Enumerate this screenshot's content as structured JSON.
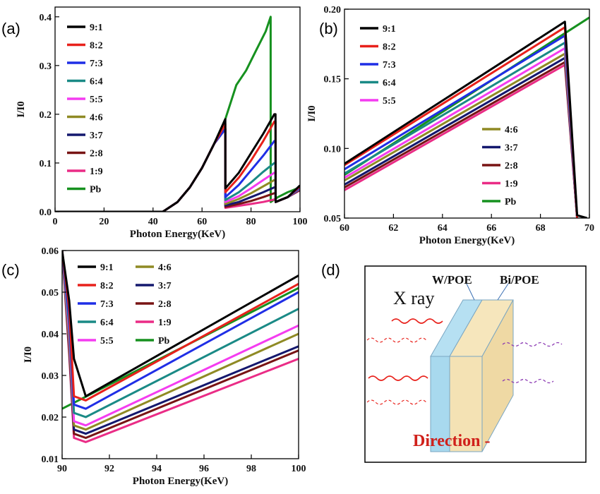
{
  "colors": {
    "9:1": "#000000",
    "8:2": "#e8211b",
    "7:3": "#1f2ee6",
    "6:4": "#1a8a86",
    "5:5": "#f43cf0",
    "4:6": "#8f8a24",
    "3:7": "#14186e",
    "2:8": "#781414",
    "1:9": "#ea2c86",
    "Pb": "#16911f"
  },
  "panels": [
    {
      "label": "(a)"
    },
    {
      "label": "(b)"
    },
    {
      "label": "(c)"
    },
    {
      "label": "(d)"
    }
  ],
  "chart_data": [
    {
      "type": "line",
      "panel": "(a)",
      "xlabel": "Photon Energy(KeV)",
      "ylabel": "I/I0",
      "xlim": [
        0,
        100
      ],
      "ylim": [
        0,
        0.42
      ],
      "xticks": [
        0,
        20,
        40,
        60,
        80,
        100
      ],
      "yticks": [
        0.0,
        0.1,
        0.2,
        0.3,
        0.4
      ],
      "ytick_labels": [
        "0.0",
        "0.1",
        "0.2",
        "0.3",
        "0.4"
      ],
      "legend": [
        "9:1",
        "8:2",
        "7:3",
        "6:4",
        "5:5",
        "4:6",
        "3:7",
        "2:8",
        "1:9",
        "Pb"
      ],
      "legend_position": "top-left",
      "series": [
        {
          "name": "Pb",
          "x": [
            0,
            44,
            50,
            55,
            60,
            65,
            69.5,
            74,
            78,
            82,
            86,
            88,
            88.05,
            91,
            95,
            100
          ],
          "y": [
            0,
            0,
            0.02,
            0.05,
            0.09,
            0.14,
            0.19,
            0.26,
            0.29,
            0.33,
            0.37,
            0.4,
            0.02,
            0.03,
            0.04,
            0.05
          ]
        },
        {
          "name": "1:9",
          "x": [
            0,
            44,
            50,
            55,
            60,
            65,
            69.5,
            69.55,
            75,
            80,
            85,
            89.5,
            90,
            90.05,
            95,
            100
          ],
          "y": [
            0,
            0,
            0.02,
            0.05,
            0.09,
            0.14,
            0.17,
            0.008,
            0.012,
            0.016,
            0.02,
            0.025,
            0.025,
            0.02,
            0.03,
            0.044
          ]
        },
        {
          "name": "2:8",
          "x": [
            0,
            44,
            50,
            55,
            60,
            65,
            69.5,
            69.55,
            75,
            80,
            85,
            89.5,
            90,
            90.05,
            95,
            100
          ],
          "y": [
            0,
            0,
            0.02,
            0.05,
            0.09,
            0.14,
            0.17,
            0.01,
            0.016,
            0.022,
            0.03,
            0.038,
            0.038,
            0.02,
            0.03,
            0.045
          ]
        },
        {
          "name": "3:7",
          "x": [
            0,
            44,
            50,
            55,
            60,
            65,
            69.5,
            69.55,
            75,
            80,
            85,
            89.5,
            90,
            90.05,
            95,
            100
          ],
          "y": [
            0,
            0,
            0.02,
            0.05,
            0.09,
            0.14,
            0.17,
            0.013,
            0.02,
            0.03,
            0.04,
            0.05,
            0.05,
            0.02,
            0.03,
            0.046
          ]
        },
        {
          "name": "4:6",
          "x": [
            0,
            44,
            50,
            55,
            60,
            65,
            69.5,
            69.55,
            75,
            80,
            85,
            89.5,
            90,
            90.05,
            95,
            100
          ],
          "y": [
            0,
            0,
            0.02,
            0.05,
            0.09,
            0.14,
            0.17,
            0.016,
            0.026,
            0.038,
            0.052,
            0.065,
            0.065,
            0.02,
            0.03,
            0.047
          ]
        },
        {
          "name": "5:5",
          "x": [
            0,
            44,
            50,
            55,
            60,
            65,
            69.5,
            69.55,
            75,
            80,
            85,
            89.5,
            90,
            90.05,
            95,
            100
          ],
          "y": [
            0,
            0,
            0.02,
            0.05,
            0.09,
            0.14,
            0.17,
            0.02,
            0.032,
            0.048,
            0.065,
            0.08,
            0.08,
            0.02,
            0.03,
            0.048
          ]
        },
        {
          "name": "6:4",
          "x": [
            0,
            44,
            50,
            55,
            60,
            65,
            69.5,
            69.55,
            75,
            80,
            85,
            89.5,
            90,
            90.05,
            95,
            100
          ],
          "y": [
            0,
            0,
            0.02,
            0.05,
            0.09,
            0.14,
            0.17,
            0.024,
            0.04,
            0.06,
            0.082,
            0.1,
            0.1,
            0.02,
            0.03,
            0.049
          ]
        },
        {
          "name": "7:3",
          "x": [
            0,
            44,
            50,
            55,
            60,
            65,
            69.5,
            69.55,
            75,
            80,
            85,
            89.5,
            90,
            90.05,
            95,
            100
          ],
          "y": [
            0,
            0,
            0.02,
            0.05,
            0.09,
            0.14,
            0.17,
            0.03,
            0.055,
            0.085,
            0.115,
            0.145,
            0.145,
            0.02,
            0.03,
            0.05
          ]
        },
        {
          "name": "8:2",
          "x": [
            0,
            44,
            50,
            55,
            60,
            65,
            69.5,
            69.55,
            75,
            80,
            85,
            89.5,
            90,
            90.05,
            95,
            100
          ],
          "y": [
            0,
            0,
            0.02,
            0.05,
            0.09,
            0.14,
            0.18,
            0.04,
            0.07,
            0.105,
            0.145,
            0.185,
            0.185,
            0.02,
            0.03,
            0.052
          ]
        },
        {
          "name": "9:1",
          "x": [
            0,
            44,
            50,
            55,
            60,
            65,
            69.5,
            69.55,
            75,
            80,
            85,
            89.5,
            90,
            90.05,
            95,
            100
          ],
          "y": [
            0,
            0,
            0.02,
            0.05,
            0.09,
            0.14,
            0.19,
            0.048,
            0.08,
            0.12,
            0.16,
            0.2,
            0.2,
            0.02,
            0.03,
            0.054
          ]
        }
      ]
    },
    {
      "type": "line",
      "panel": "(b)",
      "xlabel": "Photon Energy(KeV)",
      "ylabel": "I/I0",
      "xlim": [
        60,
        70
      ],
      "ylim": [
        0.05,
        0.2
      ],
      "xticks": [
        60,
        62,
        64,
        66,
        68,
        70
      ],
      "yticks": [
        0.05,
        0.1,
        0.15,
        0.2
      ],
      "ytick_labels": [
        "0.05",
        "0.10",
        "0.15",
        "0.20"
      ],
      "legend": [
        "9:1",
        "8:2",
        "7:3",
        "6:4",
        "5:5",
        "4:6",
        "3:7",
        "2:8",
        "1:9",
        "Pb"
      ],
      "legend_position": "top-left and center-right",
      "series": [
        {
          "name": "Pb",
          "x": [
            60,
            70
          ],
          "y": [
            0.081,
            0.194
          ]
        },
        {
          "name": "1:9",
          "x": [
            60,
            69,
            69.5
          ],
          "y": [
            0.07,
            0.16,
            0.05
          ]
        },
        {
          "name": "2:8",
          "x": [
            60,
            69,
            69.5
          ],
          "y": [
            0.072,
            0.162,
            0.05
          ]
        },
        {
          "name": "3:7",
          "x": [
            60,
            69,
            69.5
          ],
          "y": [
            0.074,
            0.165,
            0.05
          ]
        },
        {
          "name": "4:6",
          "x": [
            60,
            69,
            69.5
          ],
          "y": [
            0.077,
            0.168,
            0.05
          ]
        },
        {
          "name": "5:5",
          "x": [
            60,
            69,
            69.5
          ],
          "y": [
            0.079,
            0.172,
            0.05
          ]
        },
        {
          "name": "6:4",
          "x": [
            60,
            69,
            69.5
          ],
          "y": [
            0.082,
            0.176,
            0.05
          ]
        },
        {
          "name": "7:3",
          "x": [
            60,
            69,
            69.5
          ],
          "y": [
            0.085,
            0.181,
            0.05
          ]
        },
        {
          "name": "8:2",
          "x": [
            60,
            69,
            69.5
          ],
          "y": [
            0.088,
            0.187,
            0.05
          ]
        },
        {
          "name": "9:1",
          "x": [
            60,
            69,
            69.5,
            69.9
          ],
          "y": [
            0.089,
            0.191,
            0.052,
            0.05
          ]
        }
      ]
    },
    {
      "type": "line",
      "panel": "(c)",
      "xlabel": "Photon Energy(KeV)",
      "ylabel": "I/I0",
      "xlim": [
        90,
        100
      ],
      "ylim": [
        0.01,
        0.06
      ],
      "xticks": [
        90,
        92,
        94,
        96,
        98,
        100
      ],
      "yticks": [
        0.01,
        0.02,
        0.03,
        0.04,
        0.05,
        0.06
      ],
      "ytick_labels": [
        "0.01",
        "0.02",
        "0.03",
        "0.04",
        "0.05",
        "0.06"
      ],
      "legend": [
        "9:1",
        "8:2",
        "7:3",
        "6:4",
        "5:5",
        "4:6",
        "3:7",
        "2:8",
        "1:9",
        "Pb"
      ],
      "legend_position": "top (two columns)",
      "series": [
        {
          "name": "Pb",
          "x": [
            90,
            100
          ],
          "y": [
            0.022,
            0.051
          ]
        },
        {
          "name": "1:9",
          "x": [
            90,
            90.3,
            90.5,
            91,
            100
          ],
          "y": [
            0.06,
            0.035,
            0.015,
            0.014,
            0.034
          ]
        },
        {
          "name": "2:8",
          "x": [
            90,
            90.3,
            90.5,
            91,
            100
          ],
          "y": [
            0.06,
            0.036,
            0.016,
            0.015,
            0.036
          ]
        },
        {
          "name": "3:7",
          "x": [
            90,
            90.3,
            90.5,
            91,
            100
          ],
          "y": [
            0.06,
            0.037,
            0.017,
            0.016,
            0.037
          ]
        },
        {
          "name": "4:6",
          "x": [
            90,
            90.3,
            90.5,
            91,
            100
          ],
          "y": [
            0.06,
            0.038,
            0.018,
            0.017,
            0.04
          ]
        },
        {
          "name": "5:5",
          "x": [
            90,
            90.3,
            90.5,
            91,
            100
          ],
          "y": [
            0.06,
            0.04,
            0.019,
            0.018,
            0.042
          ]
        },
        {
          "name": "6:4",
          "x": [
            90,
            90.3,
            90.5,
            91,
            100
          ],
          "y": [
            0.06,
            0.042,
            0.021,
            0.02,
            0.046
          ]
        },
        {
          "name": "7:3",
          "x": [
            90,
            90.3,
            90.5,
            91,
            100
          ],
          "y": [
            0.06,
            0.044,
            0.023,
            0.022,
            0.05
          ]
        },
        {
          "name": "8:2",
          "x": [
            90,
            90.3,
            90.5,
            91,
            100
          ],
          "y": [
            0.06,
            0.046,
            0.025,
            0.024,
            0.052
          ]
        },
        {
          "name": "9:1",
          "x": [
            90,
            90.3,
            90.5,
            91,
            100
          ],
          "y": [
            0.06,
            0.048,
            0.034,
            0.025,
            0.054
          ]
        }
      ]
    }
  ],
  "diagram": {
    "label_w": "W/POE",
    "label_bi": "Bi/POE",
    "label_xray": "X ray",
    "label_direction": "Direction -"
  }
}
